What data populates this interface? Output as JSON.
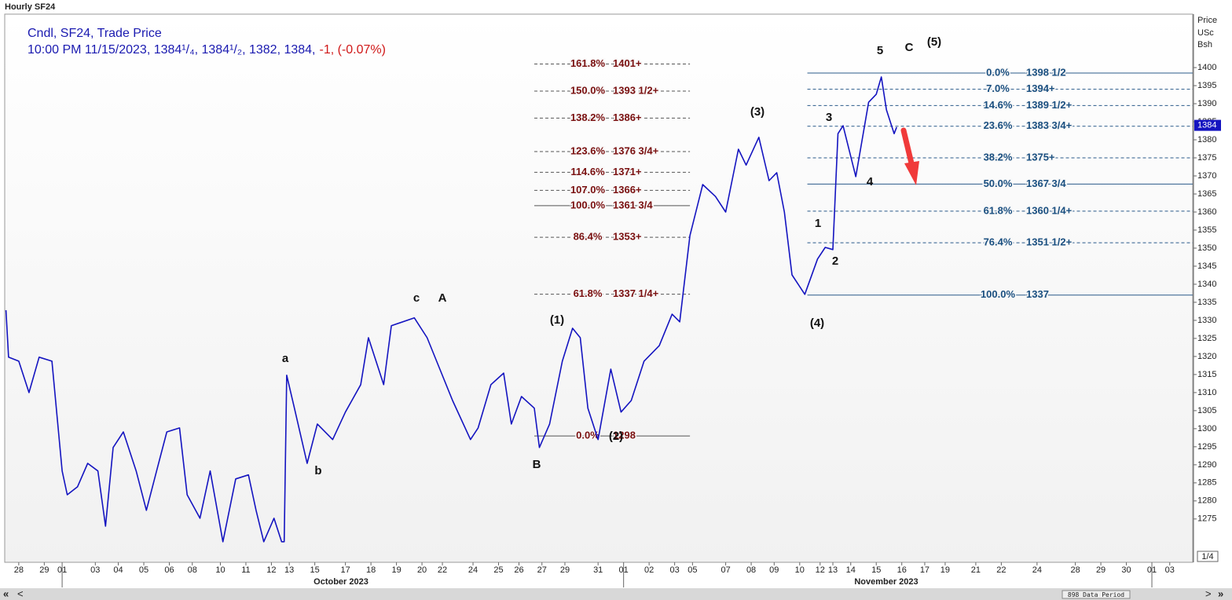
{
  "header": {
    "title": "Hourly SF24"
  },
  "info": {
    "line1": "Cndl, SF24, Trade Price",
    "ohlc": "10:00 PM 11/15/2023, 1384¹/₄, 1384¹/₂, 1382, 1384,",
    "change": "-1, (-0.07%)"
  },
  "axis_title": [
    "Price",
    "USc",
    "Bsh"
  ],
  "months": [
    "October 2023",
    "November 2023"
  ],
  "zoom": "1/4",
  "scrollbar": {
    "left": [
      "«",
      "<"
    ],
    "right": [
      ">",
      "»"
    ],
    "period": "898 Data Period"
  },
  "annotations": [
    "a",
    "b",
    "c",
    "A",
    "B",
    "(1)",
    "(2)",
    "(3)",
    "(4)",
    "1",
    "2",
    "3",
    "4",
    "5",
    "C",
    "(5)"
  ],
  "chart_data": {
    "type": "line",
    "color": "#1414c0",
    "xlim": [
      -0.55,
      46
    ],
    "ylim": [
      1263,
      1414.8
    ],
    "grid": false,
    "yticks": [
      1275,
      1280,
      1285,
      1290,
      1295,
      1300,
      1305,
      1310,
      1315,
      1320,
      1325,
      1330,
      1335,
      1340,
      1345,
      1350,
      1355,
      1360,
      1365,
      1370,
      1375,
      1380,
      1385,
      1390,
      1395,
      1400
    ],
    "xticks": [
      {
        "value": 0,
        "label": "28"
      },
      {
        "value": 1.0,
        "label": "29"
      },
      {
        "value": 1.7,
        "label": "01"
      },
      {
        "value": 3.0,
        "label": "03"
      },
      {
        "value": 3.9,
        "label": "04"
      },
      {
        "value": 4.9,
        "label": "05"
      },
      {
        "value": 5.9,
        "label": "06"
      },
      {
        "value": 6.8,
        "label": "08"
      },
      {
        "value": 7.9,
        "label": "10"
      },
      {
        "value": 8.9,
        "label": "11"
      },
      {
        "value": 9.9,
        "label": "12"
      },
      {
        "value": 10.6,
        "label": "13"
      },
      {
        "value": 11.6,
        "label": "15"
      },
      {
        "value": 12.8,
        "label": "17"
      },
      {
        "value": 13.8,
        "label": "18"
      },
      {
        "value": 14.8,
        "label": "19"
      },
      {
        "value": 15.8,
        "label": "20"
      },
      {
        "value": 16.6,
        "label": "22"
      },
      {
        "value": 17.8,
        "label": "24"
      },
      {
        "value": 18.8,
        "label": "25"
      },
      {
        "value": 19.6,
        "label": "26"
      },
      {
        "value": 20.5,
        "label": "27"
      },
      {
        "value": 21.4,
        "label": "29"
      },
      {
        "value": 22.7,
        "label": "31"
      },
      {
        "value": 23.7,
        "label": "01"
      },
      {
        "value": 24.7,
        "label": "02"
      },
      {
        "value": 25.7,
        "label": "03"
      },
      {
        "value": 26.4,
        "label": "05"
      },
      {
        "value": 27.7,
        "label": "07"
      },
      {
        "value": 28.7,
        "label": "08"
      },
      {
        "value": 29.6,
        "label": "09"
      },
      {
        "value": 30.6,
        "label": "10"
      },
      {
        "value": 31.4,
        "label": "12"
      },
      {
        "value": 31.9,
        "label": "13"
      },
      {
        "value": 32.6,
        "label": "14"
      },
      {
        "value": 33.6,
        "label": "15"
      },
      {
        "value": 34.6,
        "label": "16"
      },
      {
        "value": 35.5,
        "label": "17"
      },
      {
        "value": 36.3,
        "label": "19"
      },
      {
        "value": 37.5,
        "label": "21"
      },
      {
        "value": 38.5,
        "label": "22"
      },
      {
        "value": 39.9,
        "label": "24"
      },
      {
        "value": 41.4,
        "label": "28"
      },
      {
        "value": 42.4,
        "label": "29"
      },
      {
        "value": 43.4,
        "label": "30"
      },
      {
        "value": 44.4,
        "label": "01"
      },
      {
        "value": 45.1,
        "label": "03"
      }
    ],
    "x": [
      -0.5,
      -0.4,
      0,
      0.4,
      0.8,
      1.3,
      1.5,
      1.7,
      1.9,
      2.3,
      2.7,
      3.1,
      3.4,
      3.7,
      4.1,
      4.6,
      5.0,
      5.4,
      5.8,
      6.3,
      6.6,
      7.1,
      7.5,
      8.0,
      8.5,
      9.0,
      9.3,
      9.6,
      10.0,
      10.3,
      10.4,
      10.5,
      10.8,
      11.3,
      11.7,
      12.3,
      12.8,
      13.4,
      13.7,
      14.3,
      14.6,
      15.5,
      16.0,
      16.5,
      17.0,
      17.7,
      18.0,
      18.5,
      19.0,
      19.3,
      19.7,
      20.2,
      20.4,
      20.8,
      21.3,
      21.7,
      22.0,
      22.3,
      22.7,
      23.2,
      23.6,
      24.0,
      24.5,
      25.1,
      25.6,
      25.9,
      26.3,
      26.8,
      27.3,
      27.7,
      28.2,
      28.5,
      29.0,
      29.4,
      29.7,
      30.0,
      30.3,
      30.8,
      31.3,
      31.6,
      31.9,
      32.1,
      32.3,
      32.8,
      33.3,
      33.6,
      33.8,
      34.0,
      34.3,
      34.4
    ],
    "values": [
      1332.8,
      1319.8,
      1318.7,
      1310,
      1319.8,
      1318.7,
      1303.5,
      1288.3,
      1281.7,
      1283.9,
      1290.4,
      1288.3,
      1273,
      1294.8,
      1299.1,
      1288.3,
      1277.4,
      1288.3,
      1299.1,
      1300.2,
      1281.7,
      1275.2,
      1288.3,
      1268.7,
      1286.1,
      1287.2,
      1277.4,
      1268.7,
      1275.2,
      1268.7,
      1268.7,
      1314.8,
      1305.7,
      1290.4,
      1301.3,
      1297,
      1304.6,
      1312.2,
      1325.2,
      1312.2,
      1328.5,
      1330.7,
      1325.2,
      1316.5,
      1307.8,
      1297,
      1300.2,
      1312.2,
      1315.4,
      1301.3,
      1308.9,
      1305.7,
      1294.8,
      1301.3,
      1318.7,
      1327.8,
      1325.2,
      1305.7,
      1297,
      1316.5,
      1304.6,
      1307.8,
      1318.7,
      1323,
      1331.7,
      1329.6,
      1353.5,
      1367.6,
      1364.3,
      1360,
      1377.4,
      1373,
      1380.7,
      1368.7,
      1370.9,
      1360,
      1342.6,
      1337.2,
      1347,
      1350.2,
      1349.6,
      1381.7,
      1383.9,
      1369.8,
      1390.4,
      1392.6,
      1397.4,
      1388.3,
      1381.7,
      1383.5
    ],
    "last_price": 1384,
    "fib_sets": [
      {
        "color": "#7a1010",
        "line_color": "#555555",
        "x_start": 20.2,
        "x_end": 26.3,
        "levels": [
          {
            "ratio": "161.8%",
            "price_label": "1401+",
            "price": 1401
          },
          {
            "ratio": "150.0%",
            "price_label": "1393 1/2+",
            "price": 1393.5
          },
          {
            "ratio": "138.2%",
            "price_label": "1386+",
            "price": 1386
          },
          {
            "ratio": "123.6%",
            "price_label": "1376 3/4+",
            "price": 1376.75
          },
          {
            "ratio": "114.6%",
            "price_label": "1371+",
            "price": 1371
          },
          {
            "ratio": "107.0%",
            "price_label": "1366+",
            "price": 1366
          },
          {
            "ratio": "100.0%",
            "price_label": "1361 3/4",
            "price": 1361.75,
            "solid": true
          },
          {
            "ratio": "86.4%",
            "price_label": "1353+",
            "price": 1353
          },
          {
            "ratio": "61.8%",
            "price_label": "1337 1/4+",
            "price": 1337.25
          },
          {
            "ratio": "0.0%",
            "price_label": "1298",
            "price": 1298,
            "solid": true
          }
        ]
      },
      {
        "color": "#1a4f80",
        "line_color": "#2a5a8a",
        "x_start": 30.9,
        "x_end": 46,
        "levels": [
          {
            "ratio": "0.0%",
            "price_label": "1398 1/2",
            "price": 1398.5,
            "solid": true
          },
          {
            "ratio": "7.0%",
            "price_label": "1394+",
            "price": 1394
          },
          {
            "ratio": "14.6%",
            "price_label": "1389 1/2+",
            "price": 1389.5
          },
          {
            "ratio": "23.6%",
            "price_label": "1383 3/4+",
            "price": 1383.75
          },
          {
            "ratio": "38.2%",
            "price_label": "1375+",
            "price": 1375
          },
          {
            "ratio": "50.0%",
            "price_label": "1367 3/4",
            "price": 1367.75,
            "solid": true
          },
          {
            "ratio": "61.8%",
            "price_label": "1360 1/4+",
            "price": 1360.25
          },
          {
            "ratio": "76.4%",
            "price_label": "1351 1/2+",
            "price": 1351.5
          },
          {
            "ratio": "100.0%",
            "price_label": "1337",
            "price": 1337,
            "solid": true
          }
        ]
      }
    ]
  }
}
